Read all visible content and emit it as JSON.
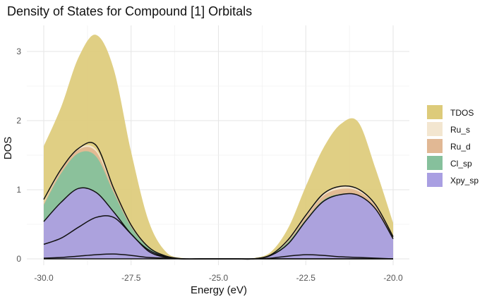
{
  "chart_data": {
    "type": "area",
    "title": "Density of States for Compound [1] Orbitals",
    "xlabel": "Energy (eV)",
    "ylabel": "DOS",
    "xlim": [
      -30.0,
      -20.0
    ],
    "ylim": [
      0,
      3.3
    ],
    "x_ticks": [
      -30.0,
      -27.5,
      -25.0,
      -22.5,
      -20.0
    ],
    "x_tick_labels": [
      "-30.0",
      "-27.5",
      "-25.0",
      "-22.5",
      "-20.0"
    ],
    "y_ticks": [
      0,
      1,
      2,
      3
    ],
    "y_tick_labels": [
      "0",
      "1",
      "2",
      "3"
    ],
    "grid": true,
    "legend": {
      "position": "right",
      "entries": [
        {
          "label": "TDOS",
          "color": "#DDCB7A"
        },
        {
          "label": "Ru_s",
          "color": "#F3E6D0"
        },
        {
          "label": "Ru_d",
          "color": "#E1B894"
        },
        {
          "label": "Cl_sp",
          "color": "#86C09C"
        },
        {
          "label": "Xpy_sp",
          "color": "#A99FE2"
        }
      ]
    },
    "x": [
      -30.0,
      -29.5,
      -29.0,
      -28.5,
      -28.0,
      -27.5,
      -27.0,
      -26.5,
      -26.0,
      -25.5,
      -25.0,
      -24.5,
      -24.0,
      -23.5,
      -23.0,
      -22.5,
      -22.0,
      -21.5,
      -21.0,
      -20.5,
      -20.0
    ],
    "series": [
      {
        "name": "TDOS",
        "color": "#DDCB7A",
        "values": [
          1.63,
          2.2,
          2.92,
          3.24,
          2.75,
          1.55,
          0.55,
          0.1,
          0.01,
          0.0,
          0.0,
          0.0,
          0.01,
          0.1,
          0.45,
          1.05,
          1.6,
          1.95,
          1.98,
          1.3,
          0.52
        ]
      },
      {
        "name": "Xpy_sp",
        "color": "#A99FE2",
        "stack": [
          {
            "role": "base",
            "values": [
              0.0,
              0.0,
              0.0,
              0.0,
              0.0,
              0.0,
              0.0,
              0.0,
              0.0,
              0.0,
              0.0,
              0.0,
              0.0,
              0.0,
              0.0,
              0.0,
              0.0,
              0.0,
              0.0,
              0.0,
              0.0
            ]
          },
          {
            "role": "inner",
            "values": [
              0.01,
              0.02,
              0.04,
              0.06,
              0.07,
              0.05,
              0.02,
              0.01,
              0.0,
              0.0,
              0.0,
              0.0,
              0.0,
              0.01,
              0.04,
              0.06,
              0.05,
              0.03,
              0.02,
              0.01,
              0.0
            ]
          },
          {
            "role": "mid",
            "values": [
              0.21,
              0.3,
              0.46,
              0.6,
              0.6,
              0.36,
              0.11,
              0.02,
              0.0,
              0.0,
              0.0,
              0.0,
              0.0,
              0.0,
              0.0,
              0.0,
              0.0,
              0.0,
              0.0,
              0.0,
              0.0
            ]
          },
          {
            "role": "top",
            "values": [
              0.54,
              0.82,
              1.02,
              0.96,
              0.68,
              0.36,
              0.13,
              0.03,
              0.0,
              0.0,
              0.0,
              0.0,
              0.0,
              0.05,
              0.22,
              0.55,
              0.83,
              0.93,
              0.92,
              0.72,
              0.29
            ]
          }
        ]
      },
      {
        "name": "Cl_sp",
        "color": "#86C09C",
        "values": [
          0.24,
          0.42,
          0.51,
          0.52,
          0.28,
          0.1,
          0.03,
          0.01,
          0.0,
          0.0,
          0.0,
          0.0,
          0.0,
          0.01,
          0.03,
          0.02,
          0.02,
          0.01,
          0.0,
          0.0,
          0.0
        ]
      },
      {
        "name": "Ru_d",
        "color": "#E1B894",
        "values": [
          0.02,
          0.04,
          0.05,
          0.07,
          0.04,
          0.02,
          0.01,
          0.0,
          0.0,
          0.0,
          0.0,
          0.0,
          0.0,
          0.0,
          0.02,
          0.04,
          0.06,
          0.07,
          0.06,
          0.04,
          0.02
        ]
      },
      {
        "name": "Ru_s",
        "color": "#F3E6D0",
        "values": [
          0.01,
          0.02,
          0.02,
          0.03,
          0.02,
          0.01,
          0.0,
          0.0,
          0.0,
          0.0,
          0.0,
          0.0,
          0.0,
          0.0,
          0.01,
          0.02,
          0.03,
          0.04,
          0.03,
          0.02,
          0.01
        ]
      }
    ],
    "outline_curves": [
      {
        "name": "outer",
        "values": [
          0.86,
          1.3,
          1.6,
          1.64,
          1.02,
          0.49,
          0.17,
          0.04,
          0.0,
          0.0,
          0.0,
          0.0,
          0.0,
          0.06,
          0.28,
          0.63,
          0.94,
          1.05,
          1.01,
          0.78,
          0.32
        ]
      },
      {
        "name": "xpy-top",
        "values": [
          0.54,
          0.82,
          1.02,
          0.96,
          0.68,
          0.36,
          0.13,
          0.03,
          0.0,
          0.0,
          0.0,
          0.0,
          0.0,
          0.05,
          0.22,
          0.55,
          0.83,
          0.93,
          0.92,
          0.72,
          0.29
        ]
      },
      {
        "name": "xpy-mid",
        "values": [
          0.21,
          0.3,
          0.46,
          0.6,
          0.6,
          0.36,
          0.11,
          0.02,
          0.0,
          0.0,
          0.0,
          0.0,
          0.0,
          0.0,
          0.0,
          0.0,
          0.0,
          0.0,
          0.0,
          0.0,
          0.0
        ]
      },
      {
        "name": "xpy-inner",
        "values": [
          0.01,
          0.02,
          0.04,
          0.06,
          0.07,
          0.05,
          0.02,
          0.01,
          0.0,
          0.0,
          0.0,
          0.0,
          0.0,
          0.01,
          0.04,
          0.06,
          0.05,
          0.03,
          0.02,
          0.01,
          0.0
        ]
      }
    ]
  }
}
